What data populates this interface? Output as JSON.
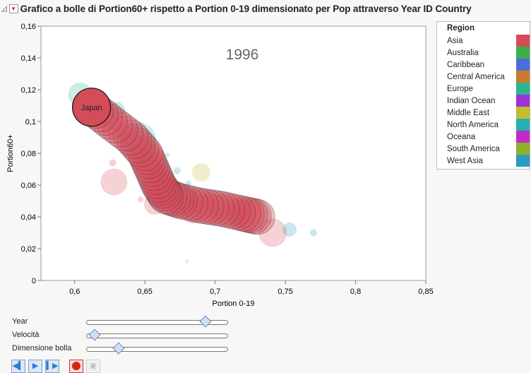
{
  "header": {
    "title": "Grafico a bolle di Portion60+ rispetto a Portion 0-19 dimensionato per Pop attraverso Year ID Country"
  },
  "chart_data": {
    "type": "scatter",
    "title": "Grafico a bolle di Portion60+ rispetto a Portion 0-19 dimensionato per Pop attraverso Year ID Country",
    "year_label": "1996",
    "xlabel": "Portion 0-19",
    "ylabel": "Portion60+",
    "xlim": [
      0.576,
      0.85
    ],
    "ylim": [
      0,
      0.16
    ],
    "xticks": [
      {
        "v": 0.6,
        "l": "0,6"
      },
      {
        "v": 0.65,
        "l": "0,65"
      },
      {
        "v": 0.7,
        "l": "0,7"
      },
      {
        "v": 0.75,
        "l": "0,75"
      },
      {
        "v": 0.8,
        "l": "0,8"
      },
      {
        "v": 0.85,
        "l": "0,85"
      }
    ],
    "yticks": [
      {
        "v": 0,
        "l": "0"
      },
      {
        "v": 0.02,
        "l": "0,02"
      },
      {
        "v": 0.04,
        "l": "0,04"
      },
      {
        "v": 0.06,
        "l": "0,06"
      },
      {
        "v": 0.08,
        "l": "0,08"
      },
      {
        "v": 0.1,
        "l": "0,1"
      },
      {
        "v": 0.12,
        "l": "0,12"
      },
      {
        "v": 0.14,
        "l": "0,14"
      },
      {
        "v": 0.16,
        "l": "0,16"
      }
    ],
    "highlight": {
      "label": "Japan",
      "region": "Asia",
      "x": 0.612,
      "y": 0.109,
      "size": 27,
      "trail": [
        [
          0.73,
          0.04
        ],
        [
          0.72,
          0.042
        ],
        [
          0.705,
          0.045
        ],
        [
          0.69,
          0.047
        ],
        [
          0.675,
          0.05
        ],
        [
          0.665,
          0.053
        ],
        [
          0.66,
          0.06
        ],
        [
          0.655,
          0.07
        ],
        [
          0.65,
          0.08
        ],
        [
          0.64,
          0.09
        ],
        [
          0.625,
          0.1
        ],
        [
          0.612,
          0.109
        ]
      ]
    },
    "points": [
      {
        "region": "Europe",
        "x": 0.604,
        "y": 0.117,
        "size": 17
      },
      {
        "region": "Europe",
        "x": 0.63,
        "y": 0.107,
        "size": 12
      },
      {
        "region": "North America",
        "x": 0.645,
        "y": 0.088,
        "size": 26
      },
      {
        "region": "Europe",
        "x": 0.666,
        "y": 0.079,
        "size": 3
      },
      {
        "region": "Asia",
        "x": 0.628,
        "y": 0.062,
        "size": 19
      },
      {
        "region": "Asia",
        "x": 0.627,
        "y": 0.074,
        "size": 5
      },
      {
        "region": "West Asia",
        "x": 0.673,
        "y": 0.069,
        "size": 5
      },
      {
        "region": "Middle East",
        "x": 0.69,
        "y": 0.068,
        "size": 13
      },
      {
        "region": "Asia",
        "x": 0.657,
        "y": 0.048,
        "size": 15
      },
      {
        "region": "Asia",
        "x": 0.647,
        "y": 0.051,
        "size": 4
      },
      {
        "region": "Asia",
        "x": 0.684,
        "y": 0.043,
        "size": 16
      },
      {
        "region": "West Asia",
        "x": 0.681,
        "y": 0.061,
        "size": 4
      },
      {
        "region": "Asia",
        "x": 0.741,
        "y": 0.03,
        "size": 20
      },
      {
        "region": "West Asia",
        "x": 0.753,
        "y": 0.032,
        "size": 10
      },
      {
        "region": "West Asia",
        "x": 0.77,
        "y": 0.03,
        "size": 5
      },
      {
        "region": "Middle East",
        "x": 0.68,
        "y": 0.012,
        "size": 3
      }
    ],
    "legend": {
      "title": "Region",
      "placement": "right",
      "items": [
        {
          "label": "Asia",
          "color": "#d44b5a"
        },
        {
          "label": "Australia",
          "color": "#3daf48"
        },
        {
          "label": "Caribbean",
          "color": "#4a6fd9"
        },
        {
          "label": "Central America",
          "color": "#cc7a2e"
        },
        {
          "label": "Europe",
          "color": "#2ab58e"
        },
        {
          "label": "Indian Ocean",
          "color": "#a12fd8"
        },
        {
          "label": "Middle East",
          "color": "#c2bd2a"
        },
        {
          "label": "North America",
          "color": "#27b0b0"
        },
        {
          "label": "Oceana",
          "color": "#c42ac4"
        },
        {
          "label": "South America",
          "color": "#8fb02a"
        },
        {
          "label": "West Asia",
          "color": "#2a9ac2"
        }
      ]
    }
  },
  "controls": {
    "year": {
      "label": "Year",
      "value": 0.86
    },
    "speed": {
      "label": "Velocità",
      "value": 0.03
    },
    "bubble": {
      "label": "Dimensione bolla",
      "value": 0.21
    }
  }
}
